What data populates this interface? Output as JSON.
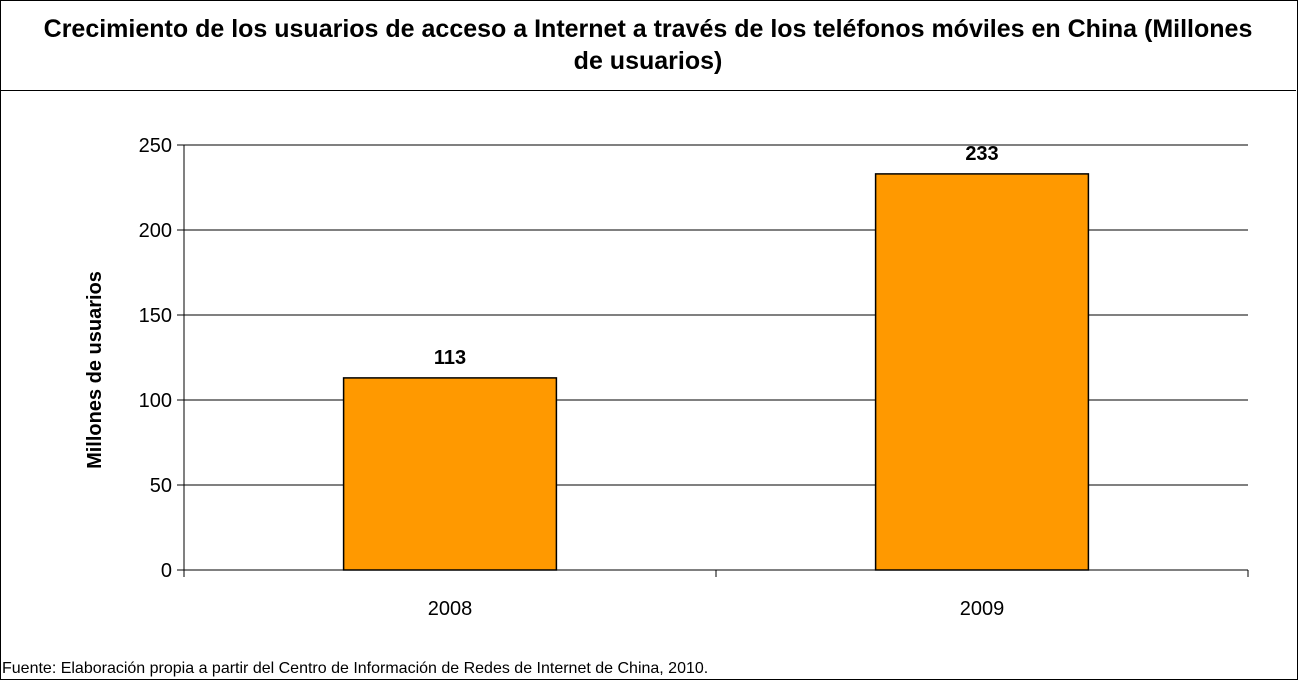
{
  "chart_data": {
    "type": "bar",
    "title": "Crecimiento de los usuarios de acceso a Internet a través de los teléfonos móviles en China (Millones de usuarios)",
    "categories": [
      "2008",
      "2009"
    ],
    "values": [
      113,
      233
    ],
    "data_labels": [
      "113",
      "233"
    ],
    "xlabel": "",
    "ylabel": "Millones de usuarios",
    "ylim": [
      0,
      250
    ],
    "yticks": [
      0,
      50,
      100,
      150,
      200,
      250
    ],
    "bar_color": "#FF9900",
    "grid": true,
    "legend": "none"
  },
  "source": "Fuente: Elaboración propia a partir del Centro de Información de Redes de Internet de China, 2010."
}
